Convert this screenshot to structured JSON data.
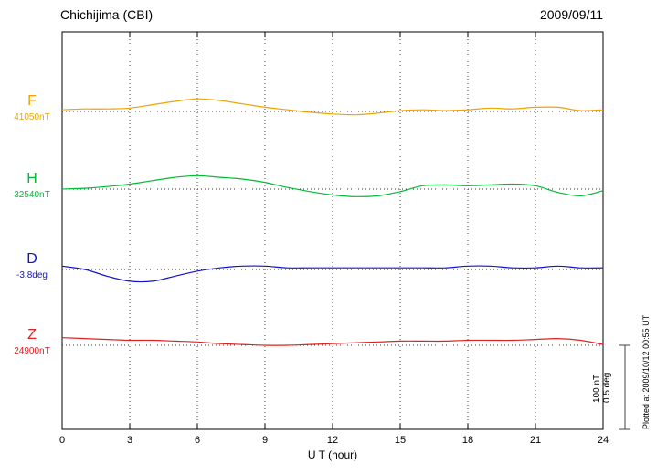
{
  "header": {
    "title": "Chichijima (CBI)",
    "date": "2009/09/11"
  },
  "axis": {
    "xlabel": "U T (hour)",
    "xticks": [
      "0",
      "3",
      "6",
      "9",
      "12",
      "15",
      "18",
      "21",
      "24"
    ]
  },
  "scalebar": {
    "nt": "100 nT",
    "deg": "0.5 deg"
  },
  "footer": {
    "plotted_at": "Plotted at 2009/10/12 00:55 UT"
  },
  "channels": [
    {
      "label": "F",
      "baseline_label": "41050nT",
      "color": "#efa400",
      "unit": "nT"
    },
    {
      "label": "H",
      "baseline_label": "32540nT",
      "color": "#00bb33",
      "unit": "nT"
    },
    {
      "label": "D",
      "baseline_label": "-3.8deg",
      "color": "#1212cc",
      "unit": "deg"
    },
    {
      "label": "Z",
      "baseline_label": "24900nT",
      "color": "#dd2222",
      "unit": "nT"
    }
  ],
  "chart_data": {
    "type": "line",
    "title": "Chichijima (CBI) magnetogram",
    "date": "2009/09/11",
    "xlabel": "U T (hour)",
    "x_range": [
      0,
      24
    ],
    "x_hours": [
      0,
      1,
      2,
      3,
      4,
      5,
      6,
      7,
      8,
      9,
      10,
      11,
      12,
      13,
      14,
      15,
      16,
      17,
      18,
      19,
      20,
      21,
      22,
      23,
      24
    ],
    "scale_bar": {
      "nT_per_bar": 100,
      "deg_per_bar": 0.5
    },
    "grid": "dotted vertical every 3 h; dotted horizontal baseline per channel",
    "series": [
      {
        "name": "F",
        "unit": "nT",
        "baseline": 41050,
        "offsets": [
          2,
          3,
          3,
          4,
          8,
          12,
          15,
          13,
          9,
          5,
          2,
          -1,
          -3,
          -4,
          -2,
          1,
          2,
          1,
          2,
          4,
          3,
          5,
          5,
          1,
          2
        ]
      },
      {
        "name": "H",
        "unit": "nT",
        "baseline": 32540,
        "offsets": [
          0,
          1,
          3,
          6,
          10,
          14,
          16,
          14,
          12,
          8,
          2,
          -3,
          -7,
          -9,
          -8,
          -3,
          4,
          5,
          4,
          5,
          6,
          4,
          -4,
          -8,
          -2
        ]
      },
      {
        "name": "D",
        "unit": "deg",
        "baseline": -3.8,
        "offsets": [
          0.02,
          0.0,
          -0.04,
          -0.07,
          -0.07,
          -0.04,
          -0.01,
          0.01,
          0.02,
          0.02,
          0.01,
          0.01,
          0.01,
          0.01,
          0.01,
          0.01,
          0.01,
          0.01,
          0.02,
          0.02,
          0.01,
          0.01,
          0.02,
          0.01,
          0.01
        ]
      },
      {
        "name": "Z",
        "unit": "nT",
        "baseline": 24900,
        "offsets": [
          9,
          8,
          7,
          6,
          6,
          5,
          4,
          2,
          1,
          0,
          0,
          1,
          2,
          3,
          4,
          5,
          5,
          5,
          6,
          6,
          6,
          7,
          8,
          6,
          1
        ]
      }
    ]
  }
}
